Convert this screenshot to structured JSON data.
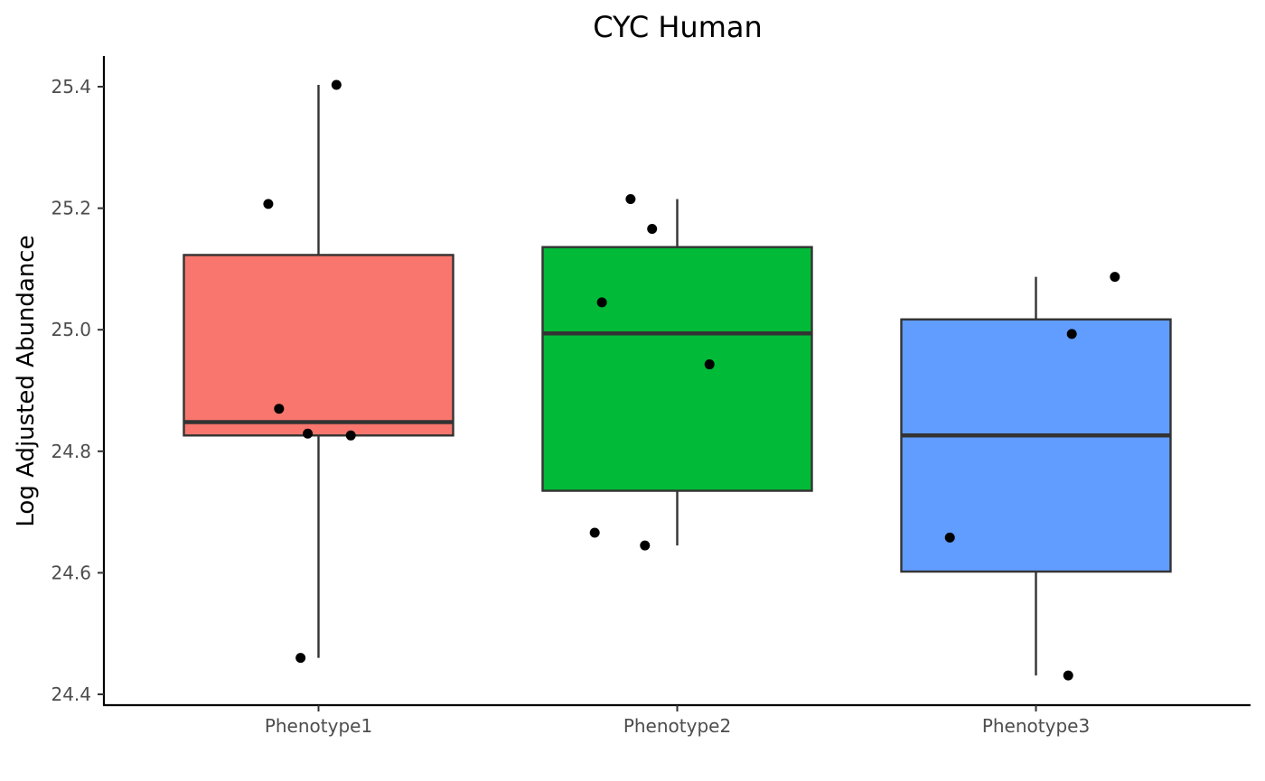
{
  "chart_data": {
    "type": "box",
    "title": "CYC Human",
    "xlabel": "",
    "ylabel": "Log Adjusted Abundance",
    "ylim": [
      24.385,
      25.45
    ],
    "yticks": [
      24.4,
      24.6,
      24.8,
      25.0,
      25.2,
      25.4
    ],
    "ytick_labels": [
      "24.4",
      "24.6",
      "24.8",
      "25.0",
      "25.2",
      "25.4"
    ],
    "categories": [
      "Phenotype1",
      "Phenotype2",
      "Phenotype3"
    ],
    "colors": [
      "#F8766D",
      "#00BA38",
      "#619CFF"
    ],
    "boxes": [
      {
        "category": "Phenotype1",
        "whisker_low": 24.46,
        "q1": 24.826,
        "median": 24.848,
        "q3": 25.123,
        "whisker_high": 25.403
      },
      {
        "category": "Phenotype2",
        "whisker_low": 24.645,
        "q1": 24.735,
        "median": 24.994,
        "q3": 25.136,
        "whisker_high": 25.215
      },
      {
        "category": "Phenotype3",
        "whisker_low": 24.431,
        "q1": 24.602,
        "median": 24.826,
        "q3": 25.017,
        "whisker_high": 25.087
      }
    ],
    "points": [
      {
        "category": "Phenotype1",
        "jitter": 0.05,
        "y": 25.403
      },
      {
        "category": "Phenotype1",
        "jitter": -0.14,
        "y": 25.207
      },
      {
        "category": "Phenotype1",
        "jitter": -0.11,
        "y": 24.87
      },
      {
        "category": "Phenotype1",
        "jitter": -0.03,
        "y": 24.829
      },
      {
        "category": "Phenotype1",
        "jitter": 0.09,
        "y": 24.826
      },
      {
        "category": "Phenotype1",
        "jitter": -0.05,
        "y": 24.46
      },
      {
        "category": "Phenotype2",
        "jitter": -0.13,
        "y": 25.215
      },
      {
        "category": "Phenotype2",
        "jitter": -0.07,
        "y": 25.166
      },
      {
        "category": "Phenotype2",
        "jitter": -0.21,
        "y": 25.045
      },
      {
        "category": "Phenotype2",
        "jitter": 0.09,
        "y": 24.943
      },
      {
        "category": "Phenotype2",
        "jitter": -0.23,
        "y": 24.666
      },
      {
        "category": "Phenotype2",
        "jitter": -0.09,
        "y": 24.645
      },
      {
        "category": "Phenotype3",
        "jitter": 0.22,
        "y": 25.087
      },
      {
        "category": "Phenotype3",
        "jitter": 0.1,
        "y": 24.993
      },
      {
        "category": "Phenotype3",
        "jitter": -0.24,
        "y": 24.658
      },
      {
        "category": "Phenotype3",
        "jitter": 0.09,
        "y": 24.431
      }
    ],
    "grid": false,
    "legend": "none"
  }
}
